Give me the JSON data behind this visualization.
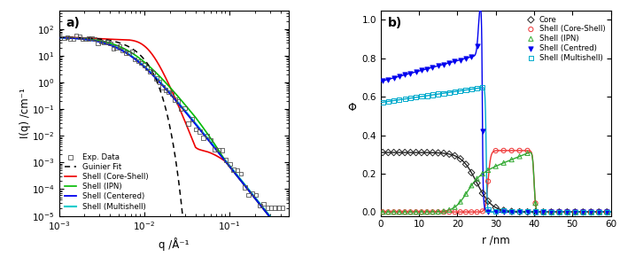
{
  "panel_a": {
    "title": "a)",
    "xlabel": "q /Å⁻¹",
    "ylabel": "I(q) /cm⁻¹",
    "xlim": [
      0.001,
      0.5
    ],
    "ylim": [
      1e-05,
      500
    ],
    "colors": {
      "exp": "#000000",
      "guinier": "#000000",
      "core_shell": "#ee0000",
      "ipn": "#00bb00",
      "centered": "#0000ee",
      "multishell": "#00cccc"
    }
  },
  "panel_b": {
    "title": "b)",
    "xlabel": "r /nm",
    "ylabel": "Φ",
    "xlim": [
      0,
      60
    ],
    "ylim": [
      -0.02,
      1.05
    ],
    "colors": {
      "core": "#222222",
      "core_shell": "#ee3333",
      "ipn": "#33aa33",
      "centered": "#0000ee",
      "multishell": "#00aacc"
    }
  }
}
